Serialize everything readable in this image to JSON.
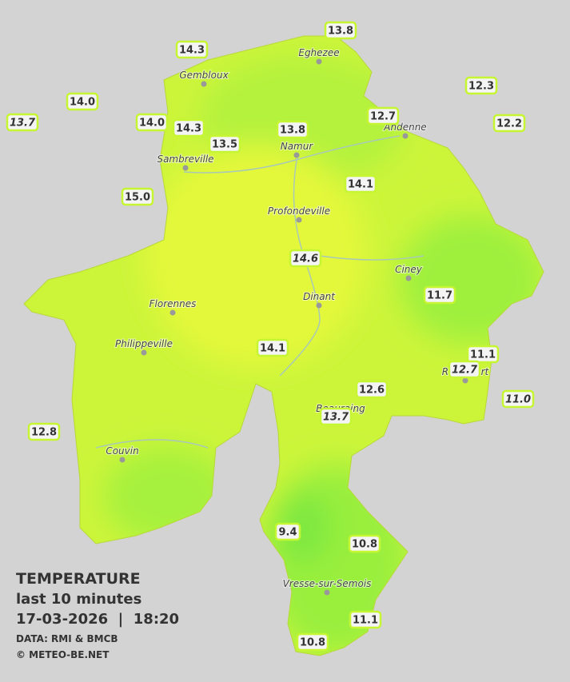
{
  "legend": {
    "title": "TEMPERATURE",
    "subtitle": "last 10 minutes",
    "datetime": "17-03-2026  |  18:20",
    "source": "DATA: RMI & BMCB",
    "credit": "© METEO-BE.NET"
  },
  "cities": [
    "Eghezee",
    "Gembloux",
    "Andenne",
    "Namur",
    "Sambreville",
    "Profondeville",
    "Ciney",
    "Dinant",
    "Florennes",
    "Philippeville",
    "Rochefort",
    "Beauraing",
    "Couvin",
    "Vresse-sur-Semois"
  ],
  "stations": [
    {
      "label": "13.8",
      "italic": false
    },
    {
      "label": "14.3",
      "italic": false
    },
    {
      "label": "12.3",
      "italic": false
    },
    {
      "label": "14.0",
      "italic": false
    },
    {
      "label": "13.7",
      "italic": true
    },
    {
      "label": "14.0",
      "italic": false
    },
    {
      "label": "14.3",
      "italic": false
    },
    {
      "label": "13.8",
      "italic": false
    },
    {
      "label": "12.7",
      "italic": false
    },
    {
      "label": "12.2",
      "italic": false
    },
    {
      "label": "13.5",
      "italic": false
    },
    {
      "label": "15.0",
      "italic": false
    },
    {
      "label": "14.1",
      "italic": false
    },
    {
      "label": "14.6",
      "italic": true
    },
    {
      "label": "11.7",
      "italic": false
    },
    {
      "label": "14.1",
      "italic": false
    },
    {
      "label": "11.1",
      "italic": false
    },
    {
      "label": "12.7",
      "italic": true
    },
    {
      "label": "12.6",
      "italic": false
    },
    {
      "label": "11.0",
      "italic": true
    },
    {
      "label": "13.7",
      "italic": true
    },
    {
      "label": "12.8",
      "italic": false
    },
    {
      "label": "9.4",
      "italic": false
    },
    {
      "label": "10.8",
      "italic": false
    },
    {
      "label": "11.1",
      "italic": false
    },
    {
      "label": "10.8",
      "italic": false
    }
  ]
}
